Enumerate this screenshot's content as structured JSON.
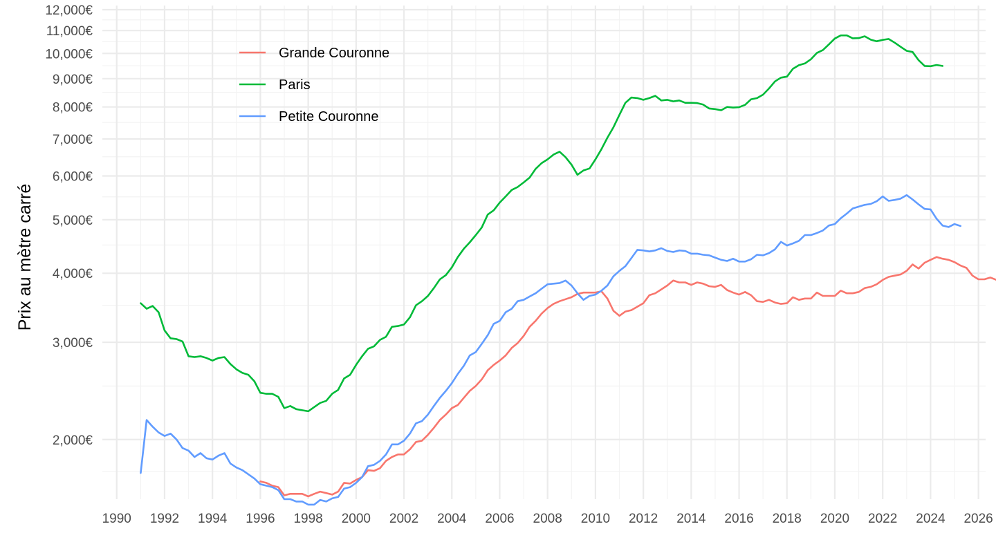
{
  "chart_data": {
    "type": "line",
    "title": "",
    "xlabel": "",
    "ylabel": "Prix au mètre carré",
    "y_scale": "log",
    "xlim": [
      1989.4,
      2026.3
    ],
    "ylim": [
      1560,
      12000
    ],
    "x_ticks": [
      "1990",
      "1992",
      "1994",
      "1996",
      "1998",
      "2000",
      "2002",
      "2004",
      "2006",
      "2008",
      "2010",
      "2012",
      "2014",
      "2016",
      "2018",
      "2020",
      "2022",
      "2024",
      "2026"
    ],
    "x_tick_values": [
      1990,
      1992,
      1994,
      1996,
      1998,
      2000,
      2002,
      2004,
      2006,
      2008,
      2010,
      2012,
      2014,
      2016,
      2018,
      2020,
      2022,
      2024,
      2026
    ],
    "x_minor_ticks": [
      1991,
      1993,
      1995,
      1997,
      1999,
      2001,
      2003,
      2005,
      2007,
      2009,
      2011,
      2013,
      2015,
      2017,
      2019,
      2021,
      2023,
      2025
    ],
    "y_ticks": [
      "2,000€",
      "3,000€",
      "4,000€",
      "5,000€",
      "6,000€",
      "7,000€",
      "8,000€",
      "9,000€",
      "10,000€",
      "11,000€",
      "12,000€"
    ],
    "y_tick_values": [
      2000,
      3000,
      4000,
      5000,
      6000,
      7000,
      8000,
      9000,
      10000,
      11000,
      12000
    ],
    "y_minor_ticks": [
      1750,
      2500,
      3500,
      4500,
      5500,
      6500,
      7500,
      8500,
      9500,
      10500,
      11500
    ],
    "grid": true,
    "legend_position": "top-left",
    "series": [
      {
        "name": "Grande Couronne",
        "color": "#f8766d",
        "x_start": 1996.0,
        "x_step": 0.25,
        "values": [
          1680,
          1670,
          1650,
          1640,
          1585,
          1595,
          1595,
          1595,
          1578,
          1595,
          1610,
          1600,
          1590,
          1610,
          1670,
          1665,
          1690,
          1710,
          1760,
          1755,
          1775,
          1830,
          1860,
          1880,
          1880,
          1920,
          1980,
          1990,
          2040,
          2100,
          2170,
          2220,
          2280,
          2310,
          2380,
          2450,
          2500,
          2570,
          2670,
          2730,
          2780,
          2840,
          2930,
          2990,
          3080,
          3200,
          3280,
          3380,
          3460,
          3520,
          3560,
          3590,
          3620,
          3670,
          3690,
          3690,
          3690,
          3710,
          3600,
          3420,
          3350,
          3410,
          3430,
          3480,
          3530,
          3650,
          3680,
          3740,
          3800,
          3880,
          3850,
          3850,
          3810,
          3850,
          3830,
          3790,
          3780,
          3810,
          3730,
          3690,
          3660,
          3700,
          3650,
          3560,
          3550,
          3580,
          3540,
          3520,
          3530,
          3620,
          3580,
          3600,
          3600,
          3690,
          3640,
          3640,
          3640,
          3720,
          3680,
          3680,
          3700,
          3760,
          3780,
          3820,
          3890,
          3940,
          3960,
          3980,
          4040,
          4150,
          4080,
          4180,
          4230,
          4280,
          4250,
          4230,
          4190,
          4130,
          4090,
          3960,
          3900,
          3900,
          3930,
          3890
        ]
      },
      {
        "name": "Paris",
        "color": "#00ba38",
        "x_start": 1991.0,
        "x_step": 0.25,
        "values": [
          3530,
          3450,
          3490,
          3400,
          3150,
          3050,
          3040,
          3010,
          2830,
          2820,
          2830,
          2810,
          2780,
          2810,
          2820,
          2740,
          2680,
          2640,
          2620,
          2550,
          2430,
          2420,
          2420,
          2390,
          2280,
          2300,
          2270,
          2260,
          2250,
          2290,
          2330,
          2350,
          2420,
          2460,
          2580,
          2620,
          2730,
          2830,
          2920,
          2950,
          3030,
          3070,
          3200,
          3210,
          3230,
          3330,
          3500,
          3560,
          3640,
          3760,
          3900,
          3970,
          4100,
          4280,
          4430,
          4550,
          4690,
          4840,
          5110,
          5200,
          5370,
          5510,
          5660,
          5730,
          5840,
          5960,
          6180,
          6330,
          6430,
          6560,
          6640,
          6490,
          6290,
          6030,
          6140,
          6190,
          6430,
          6710,
          7040,
          7350,
          7740,
          8140,
          8320,
          8300,
          8240,
          8300,
          8380,
          8220,
          8240,
          8190,
          8220,
          8140,
          8140,
          8130,
          8080,
          7950,
          7930,
          7890,
          8000,
          7980,
          7990,
          8070,
          8260,
          8300,
          8420,
          8640,
          8900,
          9040,
          9080,
          9380,
          9520,
          9590,
          9760,
          10020,
          10140,
          10380,
          10640,
          10780,
          10780,
          10650,
          10660,
          10740,
          10590,
          10520,
          10580,
          10620,
          10460,
          10280,
          10110,
          10060,
          9720,
          9490,
          9480,
          9530,
          9490
        ]
      },
      {
        "name": "Petite Couronne",
        "color": "#619cff",
        "x_start": 1991.0,
        "x_step": 0.25,
        "values": [
          1740,
          2170,
          2110,
          2060,
          2030,
          2050,
          2000,
          1930,
          1910,
          1860,
          1890,
          1850,
          1840,
          1870,
          1890,
          1810,
          1780,
          1760,
          1730,
          1700,
          1660,
          1650,
          1640,
          1620,
          1560,
          1560,
          1545,
          1545,
          1525,
          1525,
          1555,
          1545,
          1565,
          1575,
          1630,
          1640,
          1670,
          1710,
          1790,
          1800,
          1830,
          1880,
          1960,
          1960,
          1990,
          2050,
          2140,
          2160,
          2220,
          2300,
          2380,
          2450,
          2530,
          2630,
          2720,
          2840,
          2880,
          2980,
          3090,
          3240,
          3280,
          3400,
          3450,
          3560,
          3580,
          3630,
          3680,
          3750,
          3820,
          3830,
          3840,
          3880,
          3800,
          3680,
          3580,
          3640,
          3660,
          3720,
          3800,
          3950,
          4040,
          4120,
          4260,
          4410,
          4400,
          4380,
          4400,
          4440,
          4390,
          4370,
          4400,
          4390,
          4340,
          4340,
          4320,
          4310,
          4270,
          4230,
          4210,
          4250,
          4200,
          4200,
          4240,
          4320,
          4310,
          4350,
          4420,
          4560,
          4490,
          4530,
          4580,
          4690,
          4690,
          4730,
          4780,
          4880,
          4910,
          5030,
          5130,
          5240,
          5280,
          5320,
          5340,
          5400,
          5510,
          5410,
          5430,
          5460,
          5540,
          5440,
          5330,
          5230,
          5220,
          5020,
          4880,
          4850,
          4910,
          4870
        ]
      }
    ]
  }
}
